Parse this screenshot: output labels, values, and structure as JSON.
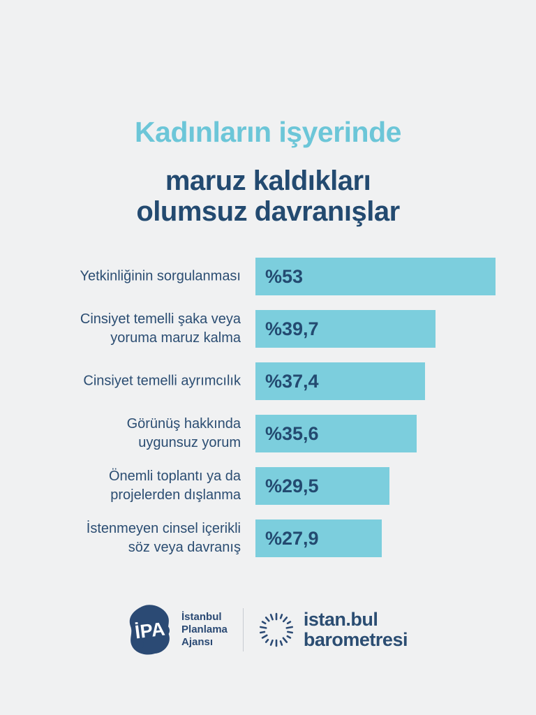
{
  "colors": {
    "background": "#f0f1f2",
    "title_accent": "#6cc6d8",
    "navy": "#234a70",
    "label_navy": "#2b4d72",
    "bar_teal": "#7ccedd",
    "divider_gray": "#c7cbd1",
    "logo_navy": "#2b4a74"
  },
  "title": {
    "line1": "Kadınların işyerinde",
    "line2": "maruz kaldıkları",
    "line3": "olumsuz davranışlar"
  },
  "chart_data": {
    "type": "bar",
    "orientation": "horizontal",
    "title": "Kadınların işyerinde maruz kaldıkları olumsuz davranışlar",
    "categories": [
      "Yetkinliğinin sorgulanması",
      "Cinsiyet temelli şaka veya yoruma maruz kalma",
      "Cinsiyet temelli ayrımcılık",
      "Görünüş hakkında uygunsuz yorum",
      "Önemli toplantı ya da projelerden dışlanma",
      "İstenmeyen cinsel içerikli söz veya davranış"
    ],
    "label_lines": [
      [
        "Yetkinliğinin sorgulanması"
      ],
      [
        "Cinsiyet temelli şaka veya",
        "yoruma maruz kalma"
      ],
      [
        "Cinsiyet temelli ayrımcılık"
      ],
      [
        "Görünüş hakkında",
        "uygunsuz yorum"
      ],
      [
        "Önemli toplantı ya da",
        "projelerden dışlanma"
      ],
      [
        "İstenmeyen cinsel içerikli",
        "söz veya davranış"
      ]
    ],
    "values": [
      53,
      39.7,
      37.4,
      35.6,
      29.5,
      27.9
    ],
    "value_labels": [
      "%53",
      "%39,7",
      "%37,4",
      "%35,6",
      "%29,5",
      "%27,9"
    ],
    "xlim": [
      0,
      53
    ],
    "bar_color": "#7ccedd",
    "value_label_position": "inside-left",
    "axis": "hidden",
    "grid": false,
    "legend": "none"
  },
  "footer": {
    "ipa": {
      "acronym": "İPA",
      "org_lines": [
        "İstanbul",
        "Planlama",
        "Ajansı"
      ]
    },
    "barometresi": {
      "wordmark_line1": "istan.bul",
      "wordmark_line2": "barometresi"
    }
  }
}
